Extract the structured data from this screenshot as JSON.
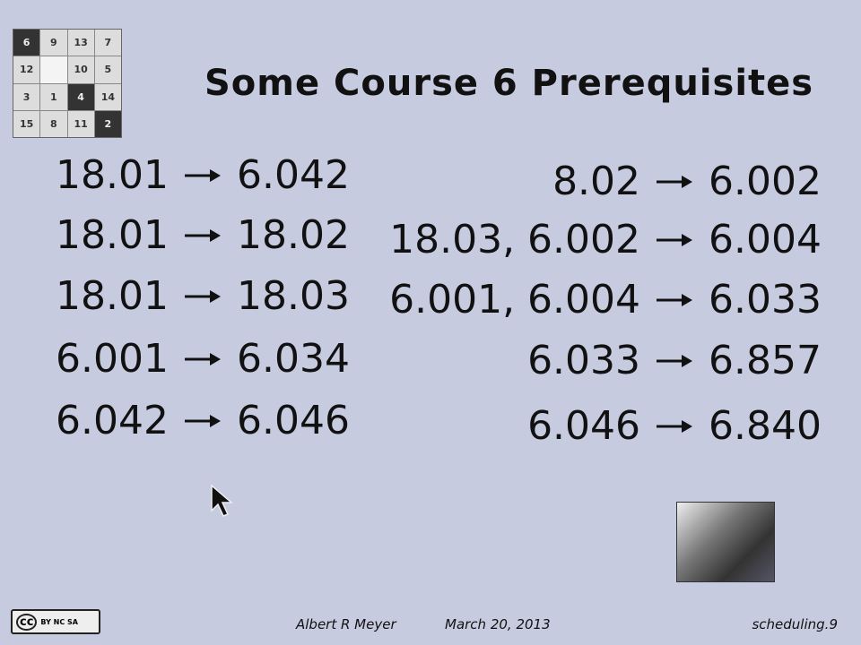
{
  "puzzle": {
    "rows": [
      [
        "6",
        "9",
        "13",
        "7"
      ],
      [
        "12",
        null,
        "10",
        "5"
      ],
      [
        "3",
        "1",
        "4",
        "14"
      ],
      [
        "15",
        "8",
        "11",
        "2"
      ]
    ],
    "dark": [
      "6",
      "4",
      "2"
    ]
  },
  "title": "Some Course 6 Prerequisites",
  "left": [
    {
      "from": "18.01",
      "to": "6.042"
    },
    {
      "from": "18.01",
      "to": "18.02"
    },
    {
      "from": "18.01",
      "to": "18.03"
    },
    {
      "from": "6.001",
      "to": "6.034"
    },
    {
      "from": "6.042",
      "to": "6.046"
    }
  ],
  "right": [
    {
      "from": "8.02",
      "to": "6.002"
    },
    {
      "from": "18.03, 6.002",
      "to": "6.004"
    },
    {
      "from": "6.001, 6.004",
      "to": "6.033"
    },
    {
      "from": "6.033",
      "to": "6.857"
    },
    {
      "from": "6.046",
      "to": "6.840"
    }
  ],
  "footer": {
    "license": "cc",
    "license_terms": "BY NC SA",
    "author": "Albert R Meyer",
    "date": "March 20, 2013",
    "slide": "scheduling.9"
  }
}
